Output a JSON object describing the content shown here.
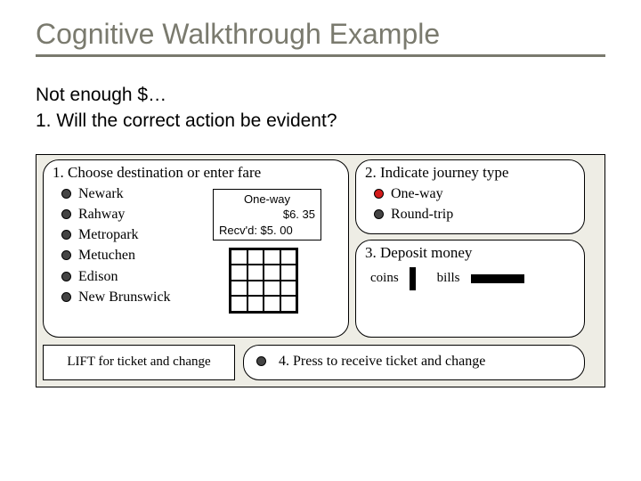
{
  "title": "Cognitive Walkthrough Example",
  "subtitle": {
    "line1": "Not enough $…",
    "line2": "1. Will the correct action be evident?"
  },
  "colors": {
    "title_color": "#7a7a6e",
    "title_rule": "#7a7a6e",
    "kiosk_bg": "#eeede5",
    "panel_bg": "#ffffff",
    "border": "#000000",
    "bullet_off": "#444444",
    "bullet_lit": "#d41b1b"
  },
  "panel1": {
    "title": "1. Choose destination or enter fare",
    "destinations": [
      "Newark",
      "Rahway",
      "Metropark",
      "Metuchen",
      "Edison",
      "New Brunswick"
    ],
    "fare_box": {
      "line1": "One-way",
      "line2": "$6. 35",
      "line3": "Recv'd: $5. 00"
    },
    "keypad": {
      "rows": 4,
      "cols": 4
    }
  },
  "panel2": {
    "title": "2. Indicate journey type",
    "options": [
      {
        "label": "One-way",
        "selected": true
      },
      {
        "label": "Round-trip",
        "selected": false
      }
    ]
  },
  "panel3": {
    "title": "3. Deposit money",
    "coins_label": "coins",
    "bills_label": "bills"
  },
  "panel4": {
    "text": "4. Press to receive ticket and change"
  },
  "lift": {
    "label": "LIFT for ticket and change"
  }
}
